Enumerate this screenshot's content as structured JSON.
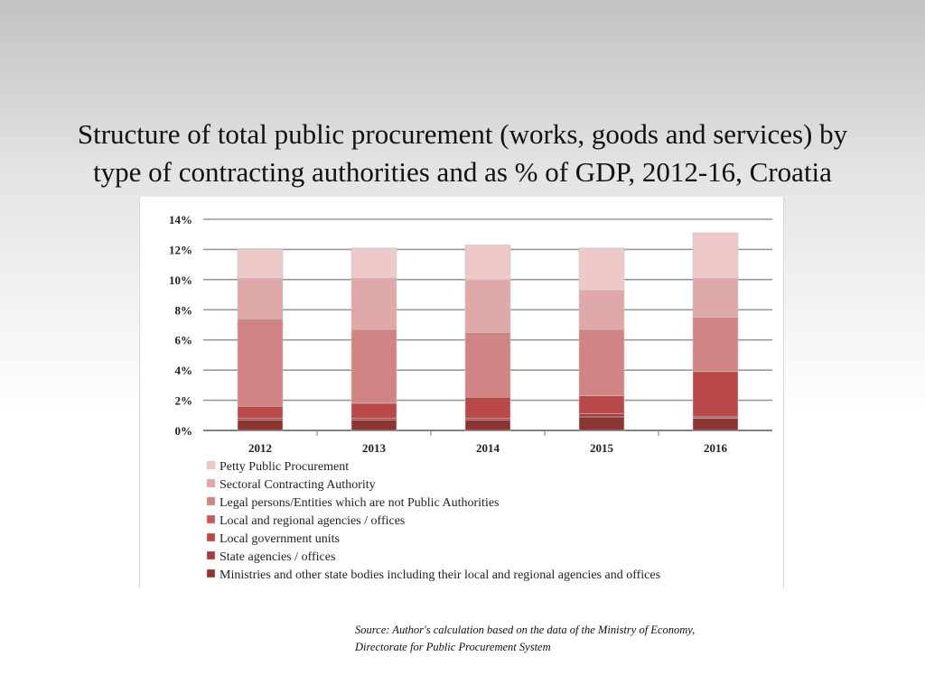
{
  "slide": {
    "title_line1": "Structure of total public procurement (works, goods and services) by",
    "title_line2": "type of contracting authorities and as % of GDP, 2012-16, Croatia",
    "source_line1": "Source: Author's calculation based on the data of the Ministry of Economy,",
    "source_line2": "Directorate for Public Procurement System"
  },
  "chart_data": {
    "type": "bar",
    "stacked": true,
    "title": "",
    "xlabel": "",
    "ylabel": "",
    "ylim": [
      0,
      14
    ],
    "yticks": [
      0,
      2,
      4,
      6,
      8,
      10,
      12,
      14
    ],
    "ytick_labels": [
      "0%",
      "2%",
      "4%",
      "6%",
      "8%",
      "10%",
      "12%",
      "14%"
    ],
    "grid": true,
    "legend_position": "bottom",
    "categories": [
      "2012",
      "2013",
      "2014",
      "2015",
      "2016"
    ],
    "series": [
      {
        "name": "Ministries and other state bodies including their local and regional agencies and offices",
        "color": "#8b3535",
        "values": [
          0.7,
          0.7,
          0.7,
          0.9,
          0.8
        ]
      },
      {
        "name": "State agencies / offices",
        "color": "#a33c3c",
        "values": [
          0.1,
          0.1,
          0.1,
          0.2,
          0.1
        ]
      },
      {
        "name": "Local government units",
        "color": "#b94848",
        "values": [
          0.8,
          1.0,
          1.4,
          1.2,
          3.0
        ]
      },
      {
        "name": "Local and regional agencies / offices",
        "color": "#c45a5a",
        "values": [
          0.0,
          0.0,
          0.0,
          0.0,
          0.0
        ]
      },
      {
        "name": "Legal persons/Entities which are not Public Authorities",
        "color": "#d18484",
        "values": [
          5.8,
          4.9,
          4.3,
          4.4,
          3.6
        ]
      },
      {
        "name": "Sectoral Contracting Authority",
        "color": "#e0a9a9",
        "values": [
          2.7,
          3.4,
          3.5,
          2.6,
          2.6
        ]
      },
      {
        "name": "Petty Public Procurement",
        "color": "#eec9c9",
        "values": [
          1.9,
          2.0,
          2.3,
          2.8,
          3.0
        ]
      }
    ]
  }
}
